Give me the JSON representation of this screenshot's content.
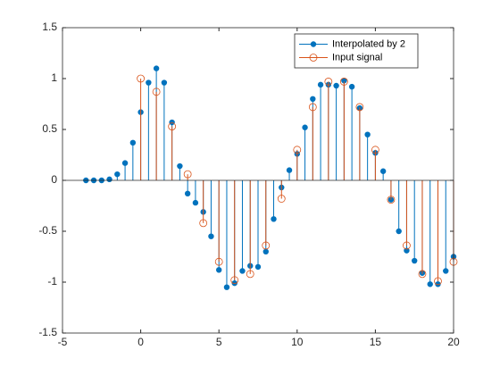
{
  "chart_data": {
    "type": "stem",
    "xlim": [
      -5,
      20
    ],
    "ylim": [
      -1.5,
      1.5
    ],
    "xticks": [
      -5,
      0,
      5,
      10,
      15,
      20
    ],
    "yticks": [
      -1.5,
      -1,
      -0.5,
      0,
      0.5,
      1,
      1.5
    ],
    "series": [
      {
        "name": "Interpolated by 2",
        "color": "#0072BD",
        "filled": true,
        "x": [
          -3.5,
          -3,
          -2.5,
          -2,
          -1.5,
          -1,
          -0.5,
          0,
          0.5,
          1,
          1.5,
          2,
          2.5,
          3,
          3.5,
          4,
          4.5,
          5,
          5.5,
          6,
          6.5,
          7,
          7.5,
          8,
          8.5,
          9,
          9.5,
          10,
          10.5,
          11,
          11.5,
          12,
          12.5,
          13,
          13.5,
          14,
          14.5,
          15,
          15.5,
          16,
          16.5,
          17,
          17.5,
          18,
          18.5,
          19,
          19.5,
          20
        ],
        "values": [
          0,
          0,
          0,
          0.01,
          0.06,
          0.17,
          0.37,
          0.67,
          0.96,
          1.1,
          0.96,
          0.57,
          0.14,
          -0.13,
          -0.22,
          -0.31,
          -0.55,
          -0.88,
          -1.05,
          -1.01,
          -0.89,
          -0.84,
          -0.85,
          -0.7,
          -0.38,
          -0.07,
          0.1,
          0.26,
          0.52,
          0.8,
          0.94,
          0.94,
          0.93,
          0.98,
          0.92,
          0.71,
          0.45,
          0.27,
          0.09,
          -0.19,
          -0.5,
          -0.69,
          -0.79,
          -0.91,
          -1.02,
          -1.02,
          -0.89,
          -0.75
        ]
      },
      {
        "name": "Input signal",
        "color": "#D95319",
        "filled": false,
        "x": [
          0,
          1,
          2,
          3,
          4,
          5,
          6,
          7,
          8,
          9,
          10,
          11,
          12,
          13,
          14,
          15,
          16,
          17,
          18,
          19,
          20
        ],
        "values": [
          1.0,
          0.87,
          0.53,
          0.06,
          -0.42,
          -0.8,
          -0.98,
          -0.92,
          -0.64,
          -0.18,
          0.3,
          0.72,
          0.97,
          0.97,
          0.72,
          0.3,
          -0.19,
          -0.64,
          -0.92,
          -0.99,
          -0.8
        ]
      }
    ]
  }
}
